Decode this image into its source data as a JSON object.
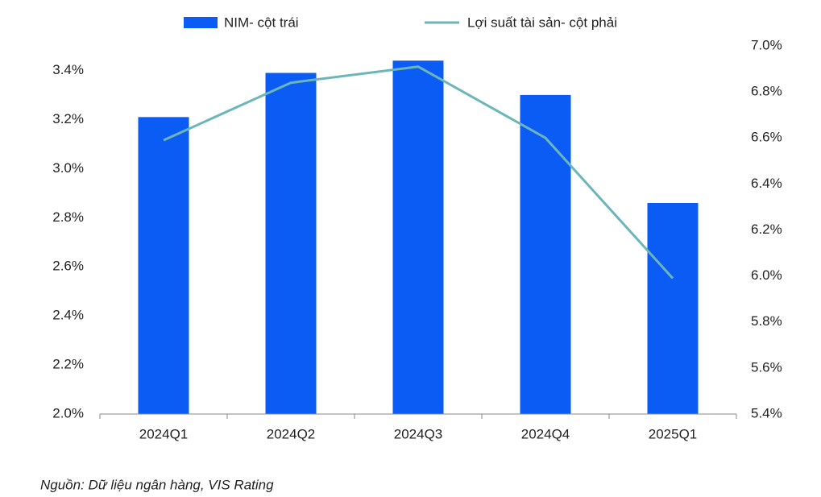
{
  "chart_data": {
    "type": "bar-line",
    "categories": [
      "2024Q1",
      "2024Q2",
      "2024Q3",
      "2024Q4",
      "2025Q1"
    ],
    "series": [
      {
        "name": "NIM- cột trái",
        "type": "bar",
        "color": "#0b5cf5",
        "values": [
          3.21,
          3.39,
          3.44,
          3.3,
          2.86
        ]
      },
      {
        "name": "Lợi suất tài sản- cột phải",
        "type": "line",
        "axis": "y2",
        "color": "#6bb6b9",
        "values": [
          6.59,
          6.84,
          6.91,
          6.6,
          5.99
        ]
      }
    ],
    "ylim": [
      2.0,
      3.5
    ],
    "yticks": [
      {
        "value": 2.0,
        "label": "2.0%"
      },
      {
        "value": 2.2,
        "label": "2.2%"
      },
      {
        "value": 2.4,
        "label": "2.4%"
      },
      {
        "value": 2.6,
        "label": "2.6%"
      },
      {
        "value": 2.8,
        "label": "2.8%"
      },
      {
        "value": 3.0,
        "label": "3.0%"
      },
      {
        "value": 3.2,
        "label": "3.2%"
      },
      {
        "value": 3.4,
        "label": "3.4%"
      }
    ],
    "y2lim": [
      5.4,
      7.0
    ],
    "y2ticks": [
      {
        "value": 5.4,
        "label": "5.4%"
      },
      {
        "value": 5.6,
        "label": "5.6%"
      },
      {
        "value": 5.8,
        "label": "5.8%"
      },
      {
        "value": 6.0,
        "label": "6.0%"
      },
      {
        "value": 6.2,
        "label": "6.2%"
      },
      {
        "value": 6.4,
        "label": "6.4%"
      },
      {
        "value": 6.6,
        "label": "6.6%"
      },
      {
        "value": 6.8,
        "label": "6.8%"
      },
      {
        "value": 7.0,
        "label": "7.0%"
      }
    ],
    "grid": false,
    "legend": "top",
    "source": "Nguồn: Dữ liệu ngân hàng, VIS Rating"
  }
}
